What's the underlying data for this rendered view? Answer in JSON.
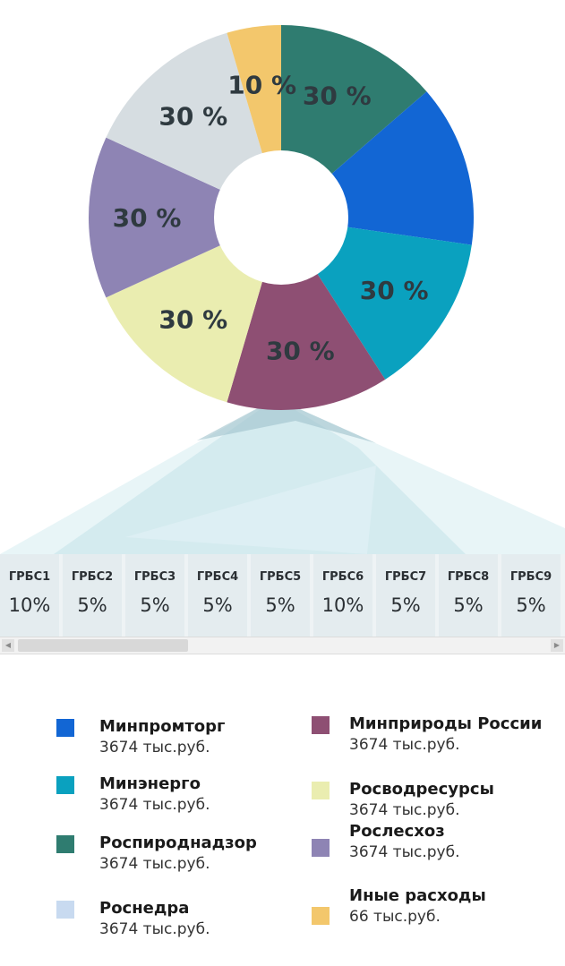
{
  "chart_data": {
    "type": "pie",
    "donut": true,
    "slices": [
      {
        "label": "Роспироднадзор",
        "value": 30,
        "data_label": "30 %",
        "color": "#2f7c70"
      },
      {
        "label": "Минпромторг",
        "value": 30,
        "data_label": "",
        "color": "#1266d4"
      },
      {
        "label": "Минэнерго",
        "value": 30,
        "data_label": "30 %",
        "color": "#0aa1bf"
      },
      {
        "label": "Минприроды России",
        "value": 30,
        "data_label": "30 %",
        "color": "#8e4f73"
      },
      {
        "label": "Росводресурсы",
        "value": 30,
        "data_label": "30 %",
        "color": "#eaedb0"
      },
      {
        "label": "Рослесхоз",
        "value": 30,
        "data_label": "30 %",
        "color": "#8e84b4"
      },
      {
        "label": "Роснедра",
        "value": 30,
        "data_label": "30 %",
        "color": "#d6dde1"
      },
      {
        "label": "Иные расходы",
        "value": 10,
        "data_label": "10 %",
        "color": "#f3c76c"
      }
    ]
  },
  "grbs": [
    {
      "name": "ГРБС1",
      "value": "10%"
    },
    {
      "name": "ГРБС2",
      "value": "5%"
    },
    {
      "name": "ГРБС3",
      "value": "5%"
    },
    {
      "name": "ГРБС4",
      "value": "5%"
    },
    {
      "name": "ГРБС5",
      "value": "5%"
    },
    {
      "name": "ГРБС6",
      "value": "10%"
    },
    {
      "name": "ГРБС7",
      "value": "5%"
    },
    {
      "name": "ГРБС8",
      "value": "5%"
    },
    {
      "name": "ГРБС9",
      "value": "5%"
    }
  ],
  "legend": [
    {
      "name": "Минпромторг",
      "value": "3674 тыс.руб.",
      "color": "#1266d4"
    },
    {
      "name": "Минэнерго",
      "value": "3674 тыс.руб.",
      "color": "#0aa1bf"
    },
    {
      "name": "Роспироднадзор",
      "value": "3674 тыс.руб.",
      "color": "#2f7c70"
    },
    {
      "name": "Роснедра",
      "value": "3674 тыс.руб.",
      "color": "#c8daf0"
    },
    {
      "name": "Минприроды России",
      "value": "3674 тыс.руб.",
      "color": "#8e4f73"
    },
    {
      "name": "Росводресурсы",
      "value": "3674 тыс.руб.",
      "color": "#eaedb0"
    },
    {
      "name": "Рослесхоз",
      "value": "3674 тыс.руб.",
      "color": "#8e84b4"
    },
    {
      "name": "Иные расходы",
      "value": "66 тыс.руб.",
      "color": "#f3c76c"
    }
  ]
}
